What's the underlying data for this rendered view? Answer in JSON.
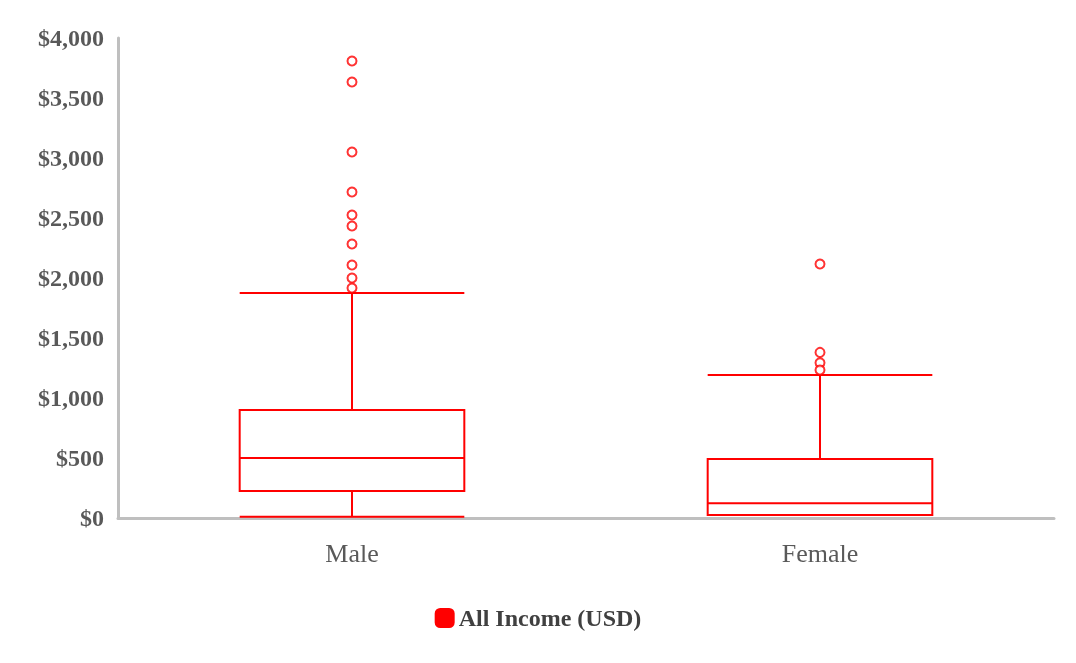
{
  "chart_data": {
    "type": "box",
    "categories": [
      "Male",
      "Female"
    ],
    "series": [
      {
        "name": "All Income (USD)",
        "color": "#ff0000",
        "boxes": [
          {
            "low": 10,
            "q1": 225,
            "median": 500,
            "q3": 900,
            "high": 1875,
            "outliers": [
              3808,
              3633,
              3050,
              2717,
              2525,
              2433,
              2283,
              2108,
              2000,
              1917
            ]
          },
          {
            "low": 25,
            "q1": 25,
            "median": 122,
            "q3": 492,
            "high": 1192,
            "outliers": [
              2117,
              1380,
              1294,
              1233
            ]
          }
        ]
      }
    ],
    "ylim": [
      0,
      4000
    ],
    "yticks": [
      {
        "value": 0,
        "label": "$0"
      },
      {
        "value": 500,
        "label": "$500"
      },
      {
        "value": 1000,
        "label": "$1,000"
      },
      {
        "value": 1500,
        "label": "$1,500"
      },
      {
        "value": 2000,
        "label": "$2,000"
      },
      {
        "value": 2500,
        "label": "$2,500"
      },
      {
        "value": 3000,
        "label": "$3,000"
      },
      {
        "value": 3500,
        "label": "$3,500"
      },
      {
        "value": 4000,
        "label": "$4,000"
      }
    ],
    "grid": false,
    "legend": "bottom"
  }
}
